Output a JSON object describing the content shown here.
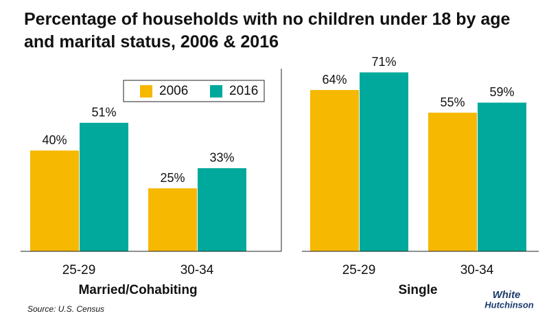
{
  "title": "Percentage of households with no children under 18 by age and marital status, 2006 & 2016",
  "source": "Source: U.S. Census",
  "logo": [
    "White",
    "Hutchinson"
  ],
  "chart_data": [
    {
      "type": "bar",
      "xlabel": "Married/Cohabiting",
      "categories": [
        "25-29",
        "30-34"
      ],
      "series": [
        {
          "name": "2006",
          "color": "#f6b800",
          "values": [
            40,
            25
          ],
          "value_labels": [
            "40%",
            "25%"
          ]
        },
        {
          "name": "2016",
          "color": "#00a99b",
          "values": [
            51,
            33
          ],
          "value_labels": [
            "51%",
            "33%"
          ]
        }
      ],
      "ylim": [
        0,
        80
      ],
      "legend": "top-right"
    },
    {
      "type": "bar",
      "xlabel": "Single",
      "categories": [
        "25-29",
        "30-34"
      ],
      "series": [
        {
          "name": "2006",
          "color": "#f6b800",
          "values": [
            64,
            55
          ],
          "value_labels": [
            "64%",
            "55%"
          ]
        },
        {
          "name": "2016",
          "color": "#00a99b",
          "values": [
            71,
            59
          ],
          "value_labels": [
            "71%",
            "59%"
          ]
        }
      ],
      "ylim": [
        0,
        80
      ]
    }
  ]
}
